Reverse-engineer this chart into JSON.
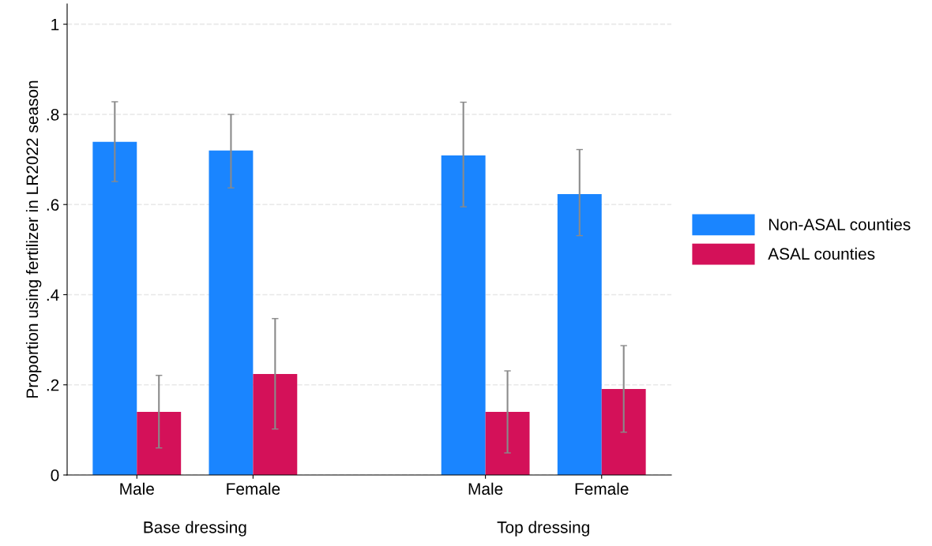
{
  "chart_data": {
    "type": "bar",
    "ylabel": "Proportion using fertilizer in LR2022 season",
    "categories": [
      "Male",
      "Female",
      null,
      "Male",
      "Female"
    ],
    "series": [
      {
        "name": "Non-ASAL counties",
        "color": "#1a85ff",
        "values": [
          0.739,
          0.72,
          null,
          0.709,
          0.623
        ],
        "errors": [
          [
            0.651,
            0.828
          ],
          [
            0.637,
            0.8
          ],
          null,
          [
            0.595,
            0.827
          ],
          [
            0.531,
            0.722
          ]
        ]
      },
      {
        "name": "ASAL counties",
        "color": "#d41159",
        "values": [
          0.14,
          0.224,
          null,
          0.14,
          0.191
        ],
        "errors": [
          [
            0.06,
            0.221
          ],
          [
            0.102,
            0.347
          ],
          null,
          [
            0.049,
            0.231
          ],
          [
            0.095,
            0.287
          ]
        ]
      }
    ],
    "annotations": [
      "Base dressing",
      "Top dressing"
    ],
    "ylim": [
      0,
      1.045
    ],
    "yticks": [
      0,
      {
        "value": 0.2,
        "label": ".2"
      },
      {
        "value": 0.4,
        "label": ".4"
      },
      {
        "value": 0.6,
        "label": ".6"
      },
      {
        "value": 0.8,
        "label": ".8"
      },
      1
    ],
    "grid": "y",
    "legend": "right"
  }
}
